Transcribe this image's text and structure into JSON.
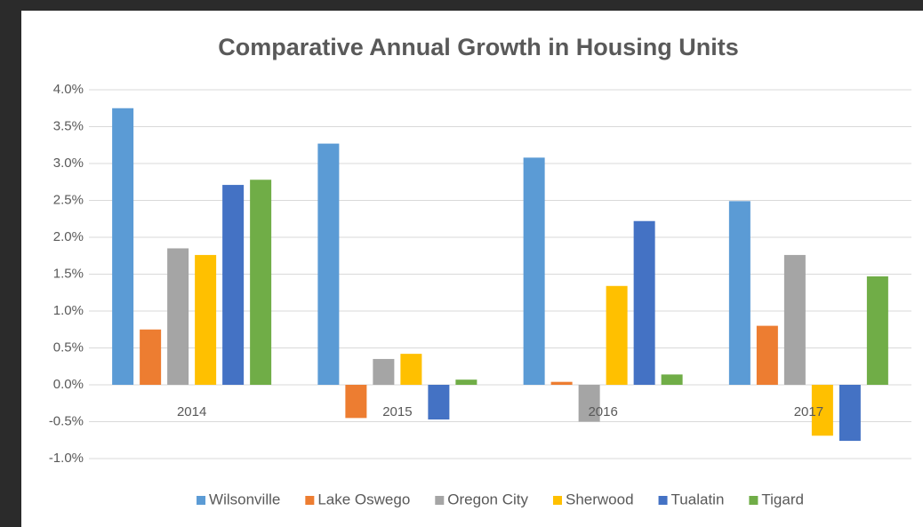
{
  "chart_data": {
    "type": "bar",
    "title": "Comparative Annual Growth in Housing Units",
    "categories": [
      "2014",
      "2015",
      "2016",
      "2017"
    ],
    "series": [
      {
        "name": "Wilsonville",
        "color": "#5b9bd5",
        "values": [
          3.75,
          3.27,
          3.08,
          2.49
        ]
      },
      {
        "name": "Lake Oswego",
        "color": "#ed7d31",
        "values": [
          0.75,
          -0.45,
          0.04,
          0.8
        ]
      },
      {
        "name": "Oregon City",
        "color": "#a5a5a5",
        "values": [
          1.85,
          0.35,
          -0.5,
          1.76
        ]
      },
      {
        "name": "Sherwood",
        "color": "#ffc000",
        "values": [
          1.76,
          0.42,
          1.34,
          -0.69
        ]
      },
      {
        "name": "Tualatin",
        "color": "#4472c4",
        "values": [
          2.71,
          -0.47,
          2.22,
          -0.76
        ]
      },
      {
        "name": "Tigard",
        "color": "#70ad47",
        "values": [
          2.78,
          0.07,
          0.14,
          1.47
        ]
      }
    ],
    "ylim": [
      -1.0,
      4.0
    ],
    "yticks": [
      {
        "value": -1.0,
        "label": "-1.0%"
      },
      {
        "value": -0.5,
        "label": "-0.5%"
      },
      {
        "value": 0.0,
        "label": "0.0%"
      },
      {
        "value": 0.5,
        "label": "0.5%"
      },
      {
        "value": 1.0,
        "label": "1.0%"
      },
      {
        "value": 1.5,
        "label": "1.5%"
      },
      {
        "value": 2.0,
        "label": "2.0%"
      },
      {
        "value": 2.5,
        "label": "2.5%"
      },
      {
        "value": 3.0,
        "label": "3.0%"
      },
      {
        "value": 3.5,
        "label": "3.5%"
      },
      {
        "value": 4.0,
        "label": "4.0%"
      }
    ],
    "grid": true,
    "legend": "bottom"
  }
}
